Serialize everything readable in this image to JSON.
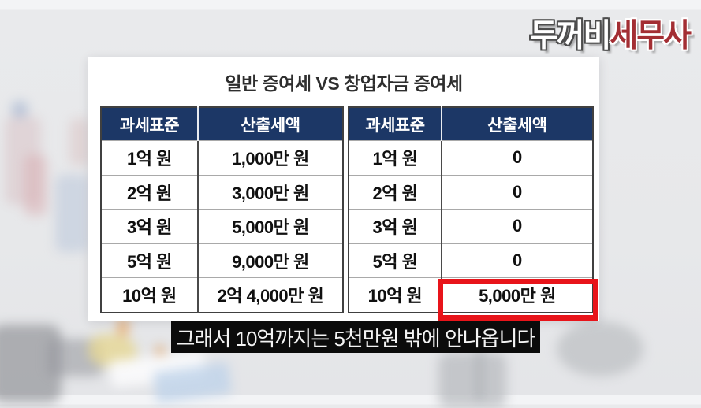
{
  "logo": {
    "part_white": "두꺼비",
    "part_red": "세무사"
  },
  "panel": {
    "title": "일반 증여세 VS 창업자금 증여세",
    "tables": [
      {
        "name": "일반 증여세",
        "headers": [
          "과세표준",
          "산출세액"
        ],
        "rows": [
          [
            "1억 원",
            "1,000만 원"
          ],
          [
            "2억 원",
            "3,000만 원"
          ],
          [
            "3억 원",
            "5,000만 원"
          ],
          [
            "5억 원",
            "9,000만 원"
          ],
          [
            "10억 원",
            "2억 4,000만 원"
          ]
        ]
      },
      {
        "name": "창업자금 증여세",
        "headers": [
          "과세표준",
          "산출세액"
        ],
        "rows": [
          [
            "1억 원",
            "0"
          ],
          [
            "2억 원",
            "0"
          ],
          [
            "3억 원",
            "0"
          ],
          [
            "5억 원",
            "0"
          ],
          [
            "10억 원",
            "5,000만 원"
          ]
        ]
      }
    ]
  },
  "caption": {
    "text": "그래서 10억까지는 5천만원 밖에 안나옵니다"
  },
  "colors": {
    "header_navy": "#1c3766",
    "highlight_red": "#e8141a",
    "logo_red": "#a32e33",
    "caption_bg": "#0b0b0b",
    "page_bg": "#e9eaec"
  },
  "chart_data": [
    {
      "type": "table",
      "title": "일반 증여세",
      "columns": [
        "과세표준",
        "산출세액"
      ],
      "rows": [
        [
          "1억 원",
          "1,000만 원"
        ],
        [
          "2억 원",
          "3,000만 원"
        ],
        [
          "3억 원",
          "5,000만 원"
        ],
        [
          "5억 원",
          "9,000만 원"
        ],
        [
          "10억 원",
          "2억 4,000만 원"
        ]
      ]
    },
    {
      "type": "table",
      "title": "창업자금 증여세",
      "columns": [
        "과세표준",
        "산출세액"
      ],
      "rows": [
        [
          "1억 원",
          "0"
        ],
        [
          "2억 원",
          "0"
        ],
        [
          "3억 원",
          "0"
        ],
        [
          "5억 원",
          "0"
        ],
        [
          "10억 원",
          "5,000만 원"
        ]
      ],
      "highlight_cell": {
        "row": 4,
        "col": 1,
        "value": "5,000만 원"
      }
    }
  ]
}
